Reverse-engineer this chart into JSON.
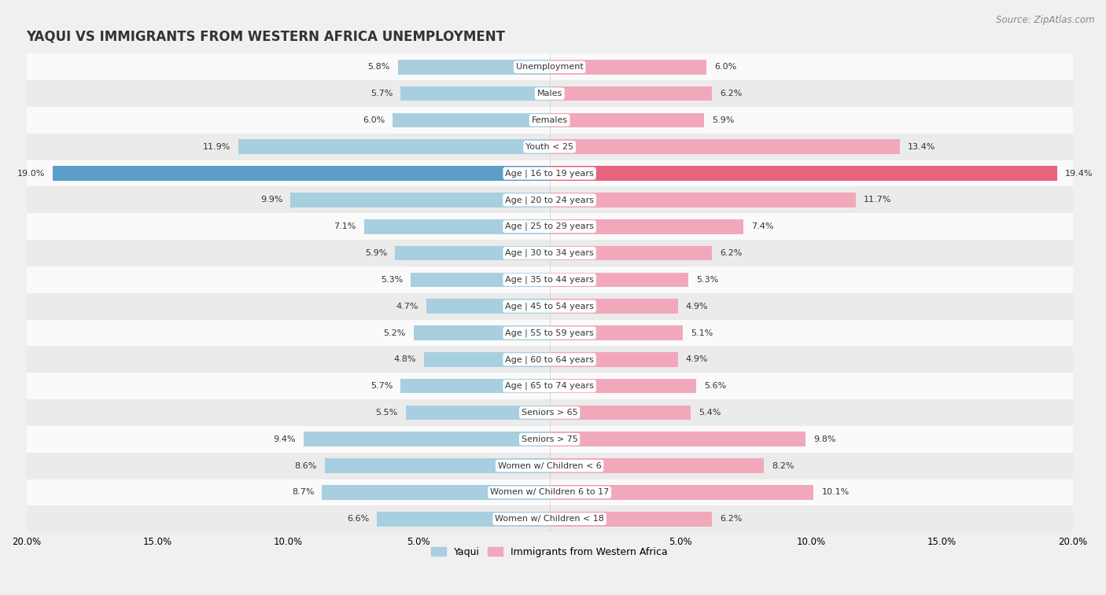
{
  "title": "YAQUI VS IMMIGRANTS FROM WESTERN AFRICA UNEMPLOYMENT",
  "source": "Source: ZipAtlas.com",
  "categories": [
    "Unemployment",
    "Males",
    "Females",
    "Youth < 25",
    "Age | 16 to 19 years",
    "Age | 20 to 24 years",
    "Age | 25 to 29 years",
    "Age | 30 to 34 years",
    "Age | 35 to 44 years",
    "Age | 45 to 54 years",
    "Age | 55 to 59 years",
    "Age | 60 to 64 years",
    "Age | 65 to 74 years",
    "Seniors > 65",
    "Seniors > 75",
    "Women w/ Children < 6",
    "Women w/ Children 6 to 17",
    "Women w/ Children < 18"
  ],
  "yaqui_values": [
    5.8,
    5.7,
    6.0,
    11.9,
    19.0,
    9.9,
    7.1,
    5.9,
    5.3,
    4.7,
    5.2,
    4.8,
    5.7,
    5.5,
    9.4,
    8.6,
    8.7,
    6.6
  ],
  "immigrants_values": [
    6.0,
    6.2,
    5.9,
    13.4,
    19.4,
    11.7,
    7.4,
    6.2,
    5.3,
    4.9,
    5.1,
    4.9,
    5.6,
    5.4,
    9.8,
    8.2,
    10.1,
    6.2
  ],
  "yaqui_color": "#a8cfe0",
  "immigrants_color": "#f2a8bb",
  "yaqui_highlight_color": "#5b9ec9",
  "immigrants_highlight_color": "#e8637d",
  "background_color": "#f0f0f0",
  "row_bg_light": "#fafafa",
  "row_bg_dark": "#ebebeb",
  "axis_limit": 20.0,
  "legend_yaqui": "Yaqui",
  "legend_immigrants": "Immigrants from Western Africa",
  "title_fontsize": 12,
  "source_fontsize": 8.5,
  "label_fontsize": 8.0,
  "value_fontsize": 8.0,
  "bar_height": 0.55,
  "label_bg_color": "#ffffff"
}
